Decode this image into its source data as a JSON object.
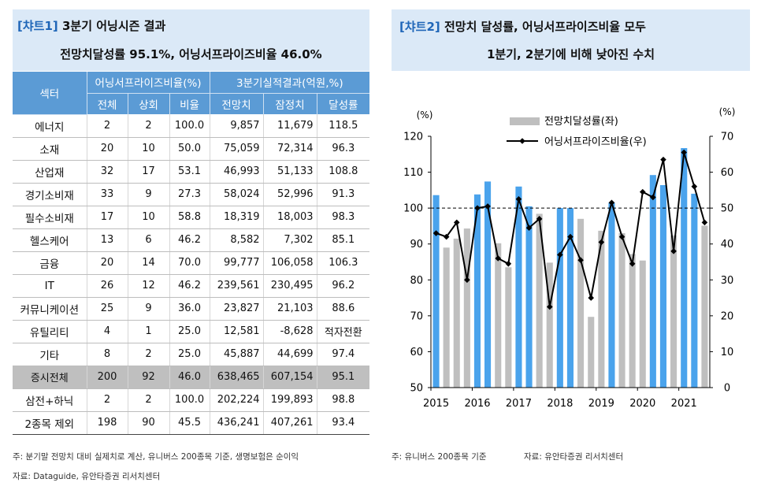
{
  "left": {
    "tag": "[챠트1]",
    "title": "3분기 어닝시즌 결과",
    "subtitle": "전망치달성률 95.1%, 어닝서프라이즈비율 46.0%",
    "table": {
      "sector_header": "섹터",
      "group1": "어닝서프라이즈비율(%)",
      "group2": "3분기실적결과(억원,%)",
      "subheaders": [
        "전체",
        "상회",
        "비율",
        "전망치",
        "잠정치",
        "달성률"
      ],
      "rows": [
        [
          "에너지",
          "2",
          "2",
          "100.0",
          "9,857",
          "11,679",
          "118.5"
        ],
        [
          "소재",
          "20",
          "10",
          "50.0",
          "75,059",
          "72,314",
          "96.3"
        ],
        [
          "산업재",
          "32",
          "17",
          "53.1",
          "46,993",
          "51,133",
          "108.8"
        ],
        [
          "경기소비재",
          "33",
          "9",
          "27.3",
          "58,024",
          "52,996",
          "91.3"
        ],
        [
          "필수소비재",
          "17",
          "10",
          "58.8",
          "18,319",
          "18,003",
          "98.3"
        ],
        [
          "헬스케어",
          "13",
          "6",
          "46.2",
          "8,582",
          "7,302",
          "85.1"
        ],
        [
          "금융",
          "20",
          "14",
          "70.0",
          "99,777",
          "106,058",
          "106.3"
        ],
        [
          "IT",
          "26",
          "12",
          "46.2",
          "239,561",
          "230,495",
          "96.2"
        ],
        [
          "커뮤니케이션",
          "25",
          "9",
          "36.0",
          "23,827",
          "21,103",
          "88.6"
        ],
        [
          "유틸리티",
          "4",
          "1",
          "25.0",
          "12,581",
          "-8,628",
          "적자전환"
        ],
        [
          "기타",
          "8",
          "2",
          "25.0",
          "45,887",
          "44,699",
          "97.4"
        ],
        [
          "증시전체",
          "200",
          "92",
          "46.0",
          "638,465",
          "607,154",
          "95.1"
        ],
        [
          "삼전+하닉",
          "2",
          "2",
          "100.0",
          "202,224",
          "199,893",
          "98.8"
        ],
        [
          "2종목 제외",
          "198",
          "90",
          "45.5",
          "436,241",
          "407,261",
          "93.4"
        ]
      ],
      "highlight_row": 11
    },
    "note": "주: 분기말 전망치 대비 실제치로 계산, 유니버스 200종목 기준, 생명보험은 순이익",
    "source": "자료: Dataguide, 유안타증권 리서치센터"
  },
  "right": {
    "tag": "[챠트2]",
    "title": "전망치 달성률, 어닝서프라이즈비율 모두",
    "subtitle": "1분기, 2분기에 비해 낮아진 수치",
    "note": "주: 유니버스 200종목 기준",
    "source": "자료: 유안타증권 리서치센터"
  },
  "chart_data": {
    "type": "bar+line",
    "quarters": [
      "2015Q1",
      "2015Q2",
      "2015Q3",
      "2015Q4",
      "2016Q1",
      "2016Q2",
      "2016Q3",
      "2016Q4",
      "2017Q1",
      "2017Q2",
      "2017Q3",
      "2017Q4",
      "2018Q1",
      "2018Q2",
      "2018Q3",
      "2018Q4",
      "2019Q1",
      "2019Q2",
      "2019Q3",
      "2019Q4",
      "2020Q1",
      "2020Q2",
      "2020Q3",
      "2020Q4",
      "2021Q1",
      "2021Q2",
      "2021Q3"
    ],
    "x_tick_labels": [
      "2015",
      "2016",
      "2017",
      "2018",
      "2019",
      "2020",
      "2021"
    ],
    "series": [
      {
        "name": "전망치달성률(좌)",
        "type": "bar",
        "axis": "left",
        "values": [
          103.6,
          89.0,
          91.5,
          94.3,
          103.8,
          107.4,
          90.2,
          83.5,
          106.0,
          100.5,
          98.4,
          84.8,
          100.0,
          100.0,
          97.0,
          69.7,
          93.7,
          101.5,
          93.0,
          87.2,
          85.4,
          109.2,
          106.4,
          92.4,
          116.7,
          104.0,
          95.1
        ]
      },
      {
        "name": "어닝서프라이즈비율(우)",
        "type": "line",
        "axis": "right",
        "values": [
          43.0,
          42.0,
          46.0,
          30.0,
          50.0,
          50.5,
          36.0,
          34.5,
          52.5,
          44.5,
          47.0,
          22.5,
          37.0,
          42.0,
          35.5,
          25.0,
          40.5,
          51.5,
          42.0,
          34.5,
          54.5,
          53.0,
          63.5,
          38.0,
          65.5,
          56.0,
          46.0
        ]
      }
    ],
    "left_axis": {
      "unit": "(%)",
      "min": 50,
      "max": 120,
      "ticks": [
        50,
        60,
        70,
        80,
        90,
        100,
        110,
        120
      ]
    },
    "right_axis": {
      "unit": "(%)",
      "min": 0,
      "max": 70,
      "ticks": [
        0,
        10,
        20,
        30,
        40,
        50,
        60,
        70
      ]
    },
    "reference_line": {
      "axis": "left",
      "value": 100
    },
    "colors": {
      "bar_above": "#4aa3ec",
      "bar_below": "#bfbfbf",
      "line": "#000000",
      "reference": "#000000"
    },
    "legend": {
      "placement": "top-center",
      "entries": [
        "전망치달성률(좌)",
        "어닝서프라이즈비율(우)"
      ]
    },
    "grid": false
  }
}
